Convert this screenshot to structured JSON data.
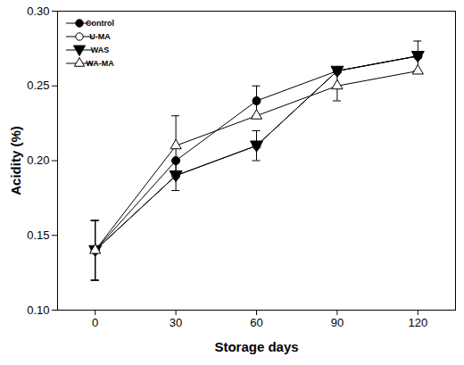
{
  "chart_data": {
    "type": "line",
    "x_label": "Storage days",
    "y_label": "Acidity (%)",
    "x": [
      0,
      30,
      60,
      90,
      120
    ],
    "xlim": [
      -14,
      134
    ],
    "xticks": [
      0,
      30,
      60,
      90,
      120
    ],
    "ylim": [
      0.1,
      0.3
    ],
    "yticks": [
      {
        "value": 0.1,
        "label": "0.10"
      },
      {
        "value": 0.15,
        "label": "0.15"
      },
      {
        "value": 0.2,
        "label": "0.20"
      },
      {
        "value": 0.25,
        "label": "0.25"
      },
      {
        "value": 0.3,
        "label": "0.30"
      }
    ],
    "grid": false,
    "legend": "upper-left",
    "series": [
      {
        "name": "Control",
        "color": "#000000",
        "marker": "circle-filled",
        "values": [
          0.14,
          0.2,
          0.24,
          0.26,
          0.27
        ],
        "errors": [
          0.02,
          null,
          0.01,
          null,
          0.01
        ]
      },
      {
        "name": "U-MA",
        "color": "#000000",
        "marker": "circle-open",
        "values": [
          0.14,
          0.19,
          0.21,
          0.26,
          0.27
        ],
        "errors": [
          null,
          null,
          null,
          null,
          null
        ]
      },
      {
        "name": "WAS",
        "color": "#000000",
        "marker": "triangle-down-filled",
        "values": [
          0.14,
          0.19,
          0.21,
          0.26,
          0.27
        ],
        "errors": [
          0.02,
          0.01,
          0.01,
          null,
          null
        ]
      },
      {
        "name": "WA-MA",
        "color": "#000000",
        "marker": "triangle-open",
        "values": [
          0.14,
          0.21,
          0.23,
          0.25,
          0.26
        ],
        "errors": [
          0.02,
          0.02,
          null,
          0.01,
          null
        ]
      }
    ]
  }
}
